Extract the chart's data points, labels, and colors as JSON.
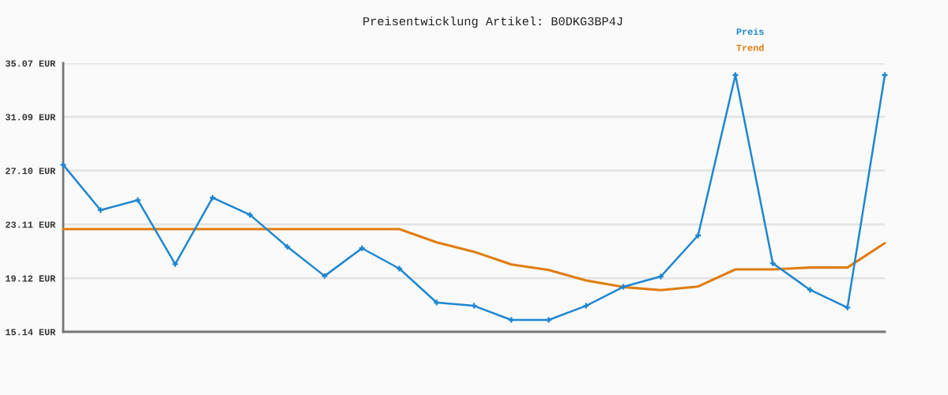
{
  "chart_data": {
    "type": "line",
    "title": "Preisentwicklung Artikel: B0DKG3BP4J",
    "categories": [
      null,
      null,
      null,
      null,
      null,
      null,
      null,
      null,
      null,
      null,
      null,
      null,
      null,
      null,
      null,
      null,
      null,
      null,
      null,
      null,
      null,
      null,
      null
    ],
    "series": [
      {
        "name": "Preis",
        "color": "#1f87d0",
        "marker": "cross",
        "values": [
          27.53,
          24.17,
          24.91,
          20.16,
          25.09,
          23.82,
          21.45,
          19.28,
          21.34,
          19.83,
          17.31,
          17.07,
          16.02,
          16.02,
          17.07,
          18.48,
          19.24,
          22.29,
          34.19,
          20.22,
          18.25,
          16.94,
          34.19
        ]
      },
      {
        "name": "Trend",
        "color": "#e07d10",
        "marker": "none",
        "values": [
          22.76,
          22.76,
          22.76,
          22.76,
          22.76,
          22.76,
          22.76,
          22.76,
          22.76,
          22.76,
          21.78,
          21.08,
          20.14,
          19.73,
          18.95,
          18.46,
          18.23,
          18.5,
          19.77,
          19.77,
          19.91,
          19.91,
          21.72
        ]
      }
    ],
    "ylim": [
      15.14,
      35.07
    ],
    "yticks": [
      {
        "value": 15.14,
        "label": "15.14 EUR"
      },
      {
        "value": 19.12,
        "label": "19.12 EUR"
      },
      {
        "value": 23.11,
        "label": "23.11 EUR"
      },
      {
        "value": 27.1,
        "label": "27.10 EUR"
      },
      {
        "value": 31.09,
        "label": "31.09 EUR"
      },
      {
        "value": 35.07,
        "label": "35.07 EUR"
      }
    ],
    "grid": "y",
    "legend": "top right",
    "tick_labels": "y",
    "line_style": "solid"
  }
}
